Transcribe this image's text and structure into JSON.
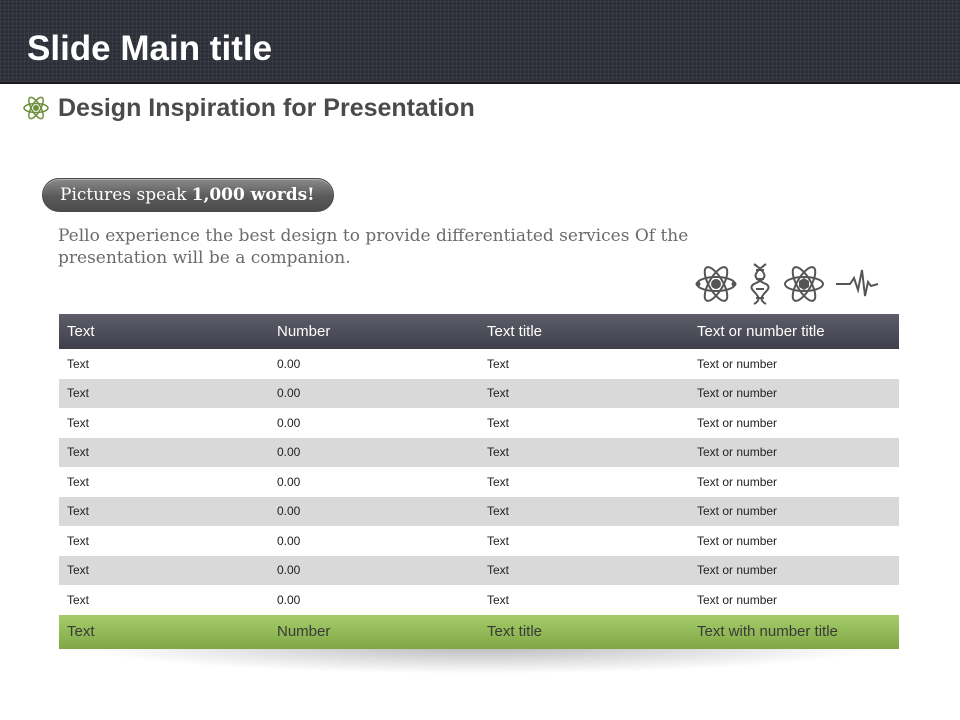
{
  "slide": {
    "main_title": "Slide Main title",
    "subtitle": "Design Inspiration for Presentation",
    "pill_text": "Pictures speak",
    "pill_bold": "1,000 words!",
    "description": "Pello experience the best design to provide differentiated services Of the presentation will be a companion."
  },
  "icons": [
    "atom-icon",
    "dna-icon",
    "atom-hexagon-icon",
    "heartbeat-icon"
  ],
  "table": {
    "headers": [
      "Text",
      "Number",
      "Text title",
      "Text or number title"
    ],
    "rows": [
      [
        "Text",
        "0.00",
        "Text",
        "Text or number"
      ],
      [
        "Text",
        "0.00",
        "Text",
        "Text or number"
      ],
      [
        "Text",
        "0.00",
        "Text",
        "Text or number"
      ],
      [
        "Text",
        "0.00",
        "Text",
        "Text or number"
      ],
      [
        "Text",
        "0.00",
        "Text",
        "Text or number"
      ],
      [
        "Text",
        "0.00",
        "Text",
        "Text or number"
      ],
      [
        "Text",
        "0.00",
        "Text",
        "Text or number"
      ],
      [
        "Text",
        "0.00",
        "Text",
        "Text or number"
      ],
      [
        "Text",
        "0.00",
        "Text",
        "Text or number"
      ]
    ],
    "footer": [
      "Text",
      "Number",
      "Text title",
      "Text with number title"
    ]
  },
  "colors": {
    "title_bar": "#2c2e38",
    "header_row": "#4a4b57",
    "footer_row": "#94bd58",
    "stripe": "#d9d9d9"
  }
}
